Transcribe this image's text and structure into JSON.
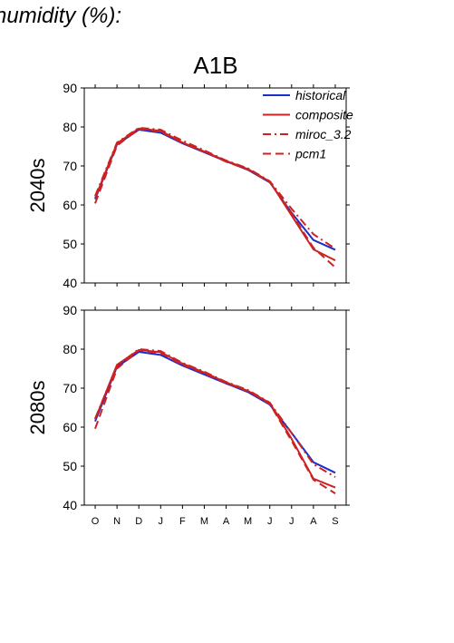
{
  "figure_title": "humidity (%):",
  "chart_data": [
    {
      "type": "line",
      "title": "A1B",
      "ylabel": "2040s",
      "ylim": [
        40,
        90
      ],
      "yticks": [
        40,
        50,
        60,
        70,
        80,
        90
      ],
      "categories": [
        "O",
        "N",
        "D",
        "J",
        "F",
        "M",
        "A",
        "M",
        "J",
        "J",
        "A",
        "S"
      ],
      "legend_placement": "top-right",
      "series": [
        {
          "name": "historical",
          "color": "#1a2ecc",
          "style": "solid",
          "values": [
            61.5,
            75.5,
            79.3,
            78.5,
            75.8,
            73.5,
            71.2,
            69.0,
            65.8,
            58.0,
            51.0,
            48.5
          ]
        },
        {
          "name": "composite",
          "color": "#cc2222",
          "style": "solid",
          "values": [
            61.8,
            75.8,
            79.6,
            79.0,
            76.0,
            73.7,
            71.3,
            69.2,
            66.0,
            57.3,
            48.6,
            45.8
          ]
        },
        {
          "name": "miroc_3.2",
          "color": "#cc2222",
          "style": "dashdot",
          "values": [
            62.3,
            76.0,
            79.8,
            79.3,
            76.5,
            74.0,
            71.4,
            69.4,
            66.1,
            59.0,
            52.5,
            48.8
          ]
        },
        {
          "name": "pcm1",
          "color": "#cc2222",
          "style": "dash",
          "values": [
            60.4,
            75.2,
            79.5,
            78.8,
            75.9,
            73.6,
            71.1,
            69.1,
            65.9,
            57.8,
            49.0,
            44.0
          ]
        }
      ]
    },
    {
      "type": "line",
      "title": "",
      "ylabel": "2080s",
      "ylim": [
        40,
        90
      ],
      "yticks": [
        40,
        50,
        60,
        70,
        80,
        90
      ],
      "categories": [
        "O",
        "N",
        "D",
        "J",
        "F",
        "M",
        "A",
        "M",
        "J",
        "J",
        "A",
        "S"
      ],
      "series": [
        {
          "name": "historical",
          "color": "#1a2ecc",
          "style": "solid",
          "values": [
            61.5,
            75.5,
            79.3,
            78.5,
            75.8,
            73.5,
            71.2,
            69.0,
            65.8,
            58.5,
            51.0,
            48.3
          ]
        },
        {
          "name": "composite",
          "color": "#cc2222",
          "style": "solid",
          "values": [
            62.0,
            76.0,
            79.8,
            79.2,
            76.3,
            74.0,
            71.5,
            69.3,
            66.2,
            57.0,
            46.8,
            44.5
          ]
        },
        {
          "name": "miroc_3.2",
          "color": "#cc2222",
          "style": "dashdot",
          "values": [
            62.2,
            75.8,
            80.0,
            79.5,
            76.5,
            74.2,
            71.6,
            69.5,
            66.3,
            58.5,
            50.5,
            47.2
          ]
        },
        {
          "name": "pcm1",
          "color": "#cc2222",
          "style": "dash",
          "values": [
            59.6,
            75.0,
            79.7,
            79.0,
            76.0,
            73.8,
            71.3,
            69.2,
            66.0,
            56.5,
            46.5,
            43.0
          ]
        }
      ]
    }
  ]
}
